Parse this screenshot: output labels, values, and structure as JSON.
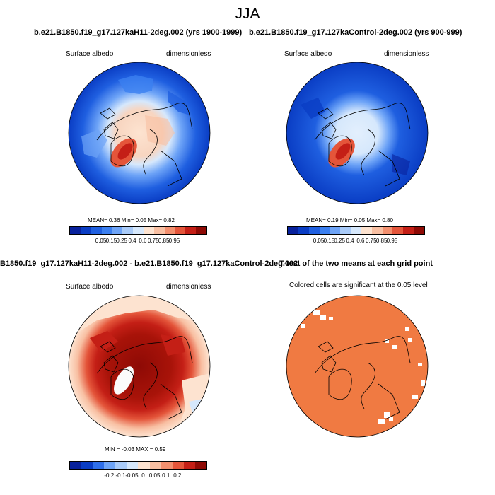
{
  "title": "JJA",
  "colors": {
    "albedo_scale": [
      "#08219c",
      "#0a3dc4",
      "#1f5fe0",
      "#3b7ff0",
      "#6ea4f7",
      "#a9cbf9",
      "#d6e8fc",
      "#fde3d0",
      "#f8bfa2",
      "#f28f6e",
      "#e4553a",
      "#c41f16",
      "#8e0a05"
    ],
    "diff_scale": [
      "#08219c",
      "#0a3dc4",
      "#2f6fea",
      "#6ea4f7",
      "#a9cbf9",
      "#d6e8fc",
      "#fde3d0",
      "#f8bfa2",
      "#f28f6e",
      "#e4553a",
      "#c41f16",
      "#8e0a05"
    ],
    "ttest_fill": "#f07a42"
  },
  "panels": {
    "p1": {
      "title": "b.e21.B1850.f19_g17.127kaH11-2deg.002 (yrs 1900-1999)",
      "left_label": "Surface albedo",
      "right_label": "dimensionless",
      "stats": "MEAN=  0.36  Min=  0.05  Max=  0.82",
      "ticks": [
        "0.05",
        "0.15",
        "0.25",
        "0.4",
        "0.6",
        "0.75",
        "0.85",
        "0.95"
      ]
    },
    "p2": {
      "title": "b.e21.B1850.f19_g17.127kaControl-2deg.002 (yrs 900-999)",
      "left_label": "Surface albedo",
      "right_label": "dimensionless",
      "stats": "MEAN=  0.19  Min=  0.05  Max=  0.80",
      "ticks": [
        "0.05",
        "0.15",
        "0.25",
        "0.4",
        "0.6",
        "0.75",
        "0.85",
        "0.95"
      ]
    },
    "p3": {
      "title": "B1850.f19_g17.127kaH11-2deg.002 - b.e21.B1850.f19_g17.127kaControl-2deg.002",
      "left_label": "Surface albedo",
      "right_label": "dimensionless",
      "stats": "MIN =  -0.03 MAX =   0.59",
      "ticks": [
        "-0.2",
        "-0.1",
        "-0.05",
        "0",
        "0.05",
        "0.1",
        "0.2"
      ]
    },
    "p4": {
      "title": "T-test of the two means at each grid point",
      "subtitle": "Colored cells are significant at the 0.05 level"
    }
  }
}
